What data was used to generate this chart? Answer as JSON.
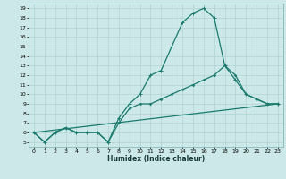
{
  "xlabel": "Humidex (Indice chaleur)",
  "xlim": [
    -0.5,
    23.5
  ],
  "ylim": [
    4.5,
    19.5
  ],
  "yticks": [
    5,
    6,
    7,
    8,
    9,
    10,
    11,
    12,
    13,
    14,
    15,
    16,
    17,
    18,
    19
  ],
  "xticks": [
    0,
    1,
    2,
    3,
    4,
    5,
    6,
    7,
    8,
    9,
    10,
    11,
    12,
    13,
    14,
    15,
    16,
    17,
    18,
    19,
    20,
    21,
    22,
    23
  ],
  "bg_color": "#cce8e8",
  "line_color": "#1a7a6e",
  "grid_color": "#aacece",
  "line1_x": [
    0,
    1,
    2,
    3,
    4,
    5,
    6,
    7,
    8,
    9,
    10,
    11,
    12,
    13,
    14,
    15,
    16,
    17,
    18,
    19,
    20,
    21,
    22,
    23
  ],
  "line1_y": [
    6,
    5,
    6,
    6.5,
    6,
    6,
    6,
    5,
    7.5,
    9,
    10,
    12,
    12.5,
    15,
    17.5,
    18.5,
    19,
    18,
    13,
    11.5,
    10,
    9.5,
    9,
    9
  ],
  "line2_x": [
    0,
    1,
    2,
    3,
    4,
    5,
    6,
    7,
    8,
    9,
    10,
    11,
    12,
    13,
    14,
    15,
    16,
    17,
    18,
    19,
    20,
    21,
    22,
    23
  ],
  "line2_y": [
    6,
    5,
    6,
    6.5,
    6,
    6,
    6,
    5,
    7,
    8.5,
    9,
    9,
    9.5,
    10,
    10.5,
    11,
    11.5,
    12,
    13,
    12,
    10,
    9.5,
    9,
    9
  ],
  "line3_x": [
    0,
    23
  ],
  "line3_y": [
    6,
    9
  ],
  "marker_size": 2.5,
  "linewidth": 0.9
}
